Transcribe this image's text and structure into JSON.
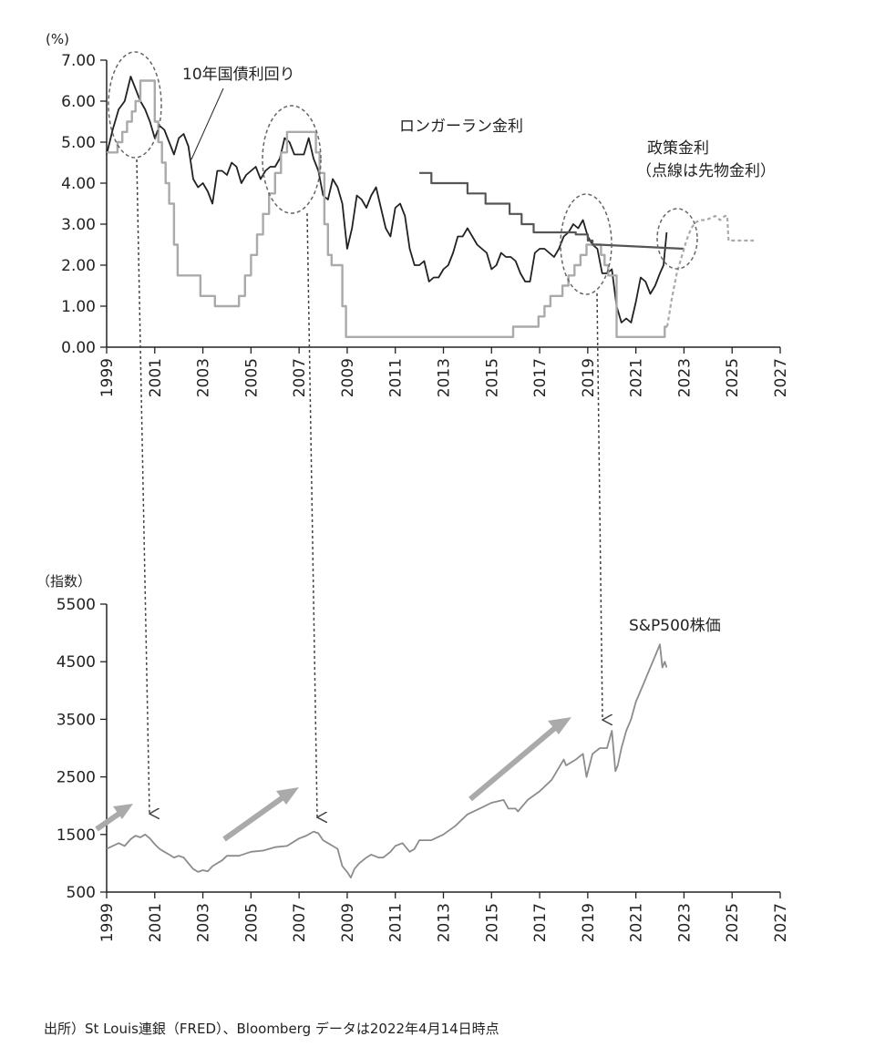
{
  "chart_data": [
    {
      "type": "line",
      "ylabel": "(%)",
      "ylim": [
        0,
        7
      ],
      "xlim": [
        1999,
        2027
      ],
      "yticks": [
        "0.00",
        "1.00",
        "2.00",
        "3.00",
        "4.00",
        "5.00",
        "6.00",
        "7.00"
      ],
      "xticks": [
        "1999",
        "2001",
        "2003",
        "2005",
        "2007",
        "2009",
        "2011",
        "2013",
        "2015",
        "2017",
        "2019",
        "2021",
        "2023",
        "2025",
        "2027"
      ],
      "colors": {
        "ten_year": "#222222",
        "policy": "#aaaaaa",
        "longrun": "#555555",
        "forward": "#aaaaaa",
        "ellipse": "#666666"
      },
      "series": [
        {
          "name": "10年国債利回り",
          "x": [
            1999.0,
            1999.25,
            1999.5,
            1999.75,
            2000.0,
            2000.2,
            2000.4,
            2000.6,
            2000.8,
            2001.0,
            2001.2,
            2001.4,
            2001.6,
            2001.8,
            2002.0,
            2002.2,
            2002.4,
            2002.6,
            2002.8,
            2003.0,
            2003.2,
            2003.4,
            2003.6,
            2003.8,
            2004.0,
            2004.2,
            2004.4,
            2004.6,
            2004.8,
            2005.0,
            2005.2,
            2005.4,
            2005.6,
            2005.8,
            2006.0,
            2006.2,
            2006.4,
            2006.6,
            2006.8,
            2007.0,
            2007.2,
            2007.4,
            2007.6,
            2007.8,
            2008.0,
            2008.2,
            2008.4,
            2008.6,
            2008.8,
            2009.0,
            2009.2,
            2009.4,
            2009.6,
            2009.8,
            2010.0,
            2010.2,
            2010.4,
            2010.6,
            2010.8,
            2011.0,
            2011.2,
            2011.4,
            2011.6,
            2011.8,
            2012.0,
            2012.2,
            2012.4,
            2012.6,
            2012.8,
            2013.0,
            2013.2,
            2013.4,
            2013.6,
            2013.8,
            2014.0,
            2014.2,
            2014.4,
            2014.6,
            2014.8,
            2015.0,
            2015.2,
            2015.4,
            2015.6,
            2015.8,
            2016.0,
            2016.2,
            2016.4,
            2016.6,
            2016.8,
            2017.0,
            2017.2,
            2017.4,
            2017.6,
            2017.8,
            2018.0,
            2018.2,
            2018.4,
            2018.6,
            2018.8,
            2019.0,
            2019.2,
            2019.4,
            2019.6,
            2019.8,
            2020.0,
            2020.2,
            2020.4,
            2020.6,
            2020.8,
            2021.0,
            2021.2,
            2021.4,
            2021.6,
            2021.8,
            2022.0,
            2022.15,
            2022.28
          ],
          "values": [
            4.7,
            5.3,
            5.8,
            6.0,
            6.6,
            6.3,
            6.0,
            5.8,
            5.5,
            5.1,
            5.4,
            5.3,
            5.0,
            4.7,
            5.1,
            5.2,
            4.9,
            4.1,
            3.9,
            4.0,
            3.8,
            3.5,
            4.3,
            4.3,
            4.2,
            4.5,
            4.4,
            4.0,
            4.2,
            4.3,
            4.4,
            4.1,
            4.3,
            4.4,
            4.4,
            4.6,
            5.1,
            5.0,
            4.7,
            4.7,
            4.7,
            5.1,
            4.6,
            4.3,
            3.7,
            3.6,
            4.1,
            3.9,
            3.5,
            2.4,
            2.9,
            3.7,
            3.6,
            3.4,
            3.7,
            3.9,
            3.4,
            2.9,
            2.7,
            3.4,
            3.5,
            3.2,
            2.4,
            2.0,
            2.0,
            2.1,
            1.6,
            1.7,
            1.7,
            1.9,
            2.0,
            2.3,
            2.7,
            2.7,
            2.9,
            2.7,
            2.5,
            2.4,
            2.3,
            1.9,
            2.0,
            2.3,
            2.2,
            2.2,
            2.1,
            1.8,
            1.6,
            1.6,
            2.3,
            2.4,
            2.4,
            2.3,
            2.2,
            2.4,
            2.7,
            2.8,
            3.0,
            2.9,
            3.1,
            2.7,
            2.5,
            2.4,
            1.8,
            1.8,
            1.9,
            1.0,
            0.6,
            0.7,
            0.6,
            1.1,
            1.7,
            1.6,
            1.3,
            1.5,
            1.8,
            2.0,
            2.8
          ]
        },
        {
          "name": "政策金利",
          "x": [
            1999.0,
            1999.45,
            1999.45,
            1999.65,
            1999.65,
            1999.85,
            1999.85,
            2000.05,
            2000.05,
            2000.2,
            2000.2,
            2000.4,
            2000.4,
            2001.0,
            2001.0,
            2001.15,
            2001.15,
            2001.3,
            2001.3,
            2001.45,
            2001.45,
            2001.6,
            2001.6,
            2001.8,
            2001.8,
            2001.95,
            2001.95,
            2002.9,
            2002.9,
            2003.5,
            2003.5,
            2004.5,
            2004.5,
            2004.75,
            2004.75,
            2005.0,
            2005.0,
            2005.25,
            2005.25,
            2005.5,
            2005.5,
            2005.75,
            2005.75,
            2006.0,
            2006.0,
            2006.25,
            2006.25,
            2006.5,
            2006.5,
            2007.7,
            2007.7,
            2007.85,
            2007.85,
            2008.05,
            2008.05,
            2008.2,
            2008.2,
            2008.35,
            2008.35,
            2008.8,
            2008.8,
            2008.95,
            2008.95,
            2015.9,
            2015.9,
            2016.95,
            2016.95,
            2017.2,
            2017.2,
            2017.45,
            2017.45,
            2017.95,
            2017.95,
            2018.2,
            2018.2,
            2018.45,
            2018.45,
            2018.7,
            2018.7,
            2018.95,
            2018.95,
            2019.55,
            2019.55,
            2019.7,
            2019.7,
            2019.85,
            2019.85,
            2020.2,
            2020.2,
            2022.2,
            2022.2,
            2022.3
          ],
          "values": [
            4.75,
            4.75,
            5.0,
            5.0,
            5.25,
            5.25,
            5.5,
            5.5,
            5.75,
            5.75,
            6.0,
            6.0,
            6.5,
            6.5,
            5.5,
            5.5,
            5.0,
            5.0,
            4.5,
            4.5,
            4.0,
            4.0,
            3.5,
            3.5,
            2.5,
            2.5,
            1.75,
            1.75,
            1.25,
            1.25,
            1.0,
            1.0,
            1.25,
            1.25,
            1.75,
            1.75,
            2.25,
            2.25,
            2.75,
            2.75,
            3.25,
            3.25,
            3.75,
            3.75,
            4.25,
            4.25,
            4.75,
            4.75,
            5.25,
            5.25,
            4.75,
            4.75,
            4.25,
            4.25,
            3.0,
            3.0,
            2.25,
            2.25,
            2.0,
            2.0,
            1.0,
            1.0,
            0.25,
            0.25,
            0.5,
            0.5,
            0.75,
            0.75,
            1.0,
            1.0,
            1.25,
            1.25,
            1.5,
            1.5,
            1.75,
            1.75,
            2.0,
            2.0,
            2.25,
            2.25,
            2.5,
            2.5,
            2.25,
            2.25,
            2.0,
            2.0,
            1.75,
            1.75,
            0.25,
            0.25,
            0.5,
            0.5
          ]
        },
        {
          "name": "ロンガーラン金利",
          "x": [
            2012.0,
            2012.5,
            2012.5,
            2012.75,
            2012.75,
            2014.0,
            2014.0,
            2014.75,
            2014.75,
            2015.75,
            2015.75,
            2016.25,
            2016.25,
            2016.5,
            2016.5,
            2016.75,
            2016.75,
            2017.5,
            2017.5,
            2018.5,
            2018.5,
            2019.0,
            2019.0,
            2019.2,
            2019.2,
            2019.45,
            2019.45,
            2023.0
          ],
          "values": [
            4.25,
            4.25,
            4.0,
            4.0,
            4.0,
            4.0,
            3.75,
            3.75,
            3.5,
            3.5,
            3.25,
            3.25,
            3.0,
            3.0,
            3.0,
            3.0,
            2.8,
            2.8,
            2.8,
            2.8,
            2.75,
            2.75,
            2.6,
            2.6,
            2.5,
            2.5,
            2.5,
            2.4
          ]
        },
        {
          "name": "政策金利（点線は先物金利）",
          "x": [
            2022.3,
            2022.5,
            2022.7,
            2022.9,
            2023.1,
            2023.3,
            2023.5,
            2023.7,
            2023.9,
            2024.1,
            2024.3,
            2024.5,
            2024.7,
            2024.8,
            2024.85,
            2025.0,
            2025.5,
            2025.9
          ],
          "values": [
            0.5,
            1.2,
            1.8,
            2.2,
            2.6,
            2.9,
            3.05,
            3.1,
            3.1,
            3.15,
            3.2,
            3.1,
            3.2,
            3.2,
            2.6,
            2.6,
            2.6,
            2.6
          ]
        }
      ],
      "annotations": {
        "ten_year": "10年国債利回り",
        "longrun": "ロンガーラン金利",
        "policy_line1": "政策金利",
        "policy_line2": "（点線は先物金利）"
      }
    },
    {
      "type": "line",
      "ylabel": "（指数）",
      "ylim": [
        500,
        5500
      ],
      "xlim": [
        1999,
        2027
      ],
      "yticks": [
        "500",
        "1500",
        "2500",
        "3500",
        "4500",
        "5500"
      ],
      "xticks": [
        "1999",
        "2001",
        "2003",
        "2005",
        "2007",
        "2009",
        "2011",
        "2013",
        "2015",
        "2017",
        "2019",
        "2021",
        "2023",
        "2025",
        "2027"
      ],
      "colors": {
        "sp500": "#8c8c8c",
        "arrow": "#aaaaaa",
        "link": "#444444"
      },
      "series": [
        {
          "name": "S&P500株価",
          "x": [
            1999.0,
            1999.25,
            1999.5,
            1999.75,
            2000.0,
            2000.2,
            2000.4,
            2000.6,
            2000.8,
            2001.0,
            2001.2,
            2001.4,
            2001.6,
            2001.8,
            2002.0,
            2002.2,
            2002.4,
            2002.6,
            2002.8,
            2003.0,
            2003.2,
            2003.4,
            2003.6,
            2003.8,
            2004.0,
            2004.5,
            2005.0,
            2005.5,
            2006.0,
            2006.5,
            2007.0,
            2007.3,
            2007.6,
            2007.8,
            2008.0,
            2008.2,
            2008.4,
            2008.6,
            2008.8,
            2009.0,
            2009.15,
            2009.3,
            2009.5,
            2009.8,
            2010.0,
            2010.3,
            2010.5,
            2010.8,
            2011.0,
            2011.3,
            2011.6,
            2011.8,
            2012.0,
            2012.5,
            2013.0,
            2013.5,
            2014.0,
            2014.5,
            2015.0,
            2015.5,
            2015.7,
            2016.0,
            2016.1,
            2016.5,
            2017.0,
            2017.5,
            2018.0,
            2018.1,
            2018.5,
            2018.8,
            2018.95,
            2019.2,
            2019.5,
            2019.8,
            2020.0,
            2020.15,
            2020.25,
            2020.4,
            2020.6,
            2020.8,
            2021.0,
            2021.3,
            2021.6,
            2021.9,
            2022.0,
            2022.1,
            2022.2,
            2022.28
          ],
          "values": [
            1250,
            1300,
            1350,
            1300,
            1420,
            1480,
            1450,
            1500,
            1430,
            1330,
            1250,
            1200,
            1150,
            1100,
            1130,
            1100,
            1000,
            900,
            850,
            880,
            860,
            950,
            1000,
            1050,
            1130,
            1130,
            1200,
            1220,
            1280,
            1300,
            1430,
            1480,
            1550,
            1520,
            1400,
            1350,
            1300,
            1250,
            950,
            850,
            750,
            900,
            1000,
            1100,
            1150,
            1100,
            1100,
            1200,
            1300,
            1350,
            1200,
            1250,
            1400,
            1400,
            1500,
            1650,
            1850,
            1950,
            2050,
            2100,
            1950,
            1950,
            1900,
            2100,
            2250,
            2450,
            2800,
            2700,
            2800,
            2900,
            2500,
            2900,
            3000,
            3000,
            3300,
            2600,
            2700,
            3000,
            3300,
            3500,
            3800,
            4100,
            4400,
            4700,
            4800,
            4400,
            4500,
            4400
          ]
        }
      ],
      "annotations": {
        "sp500": "S&P500株価"
      }
    }
  ],
  "source": "出所）St Louis連銀（FRED）、Bloomberg データは2022年4月14日時点"
}
